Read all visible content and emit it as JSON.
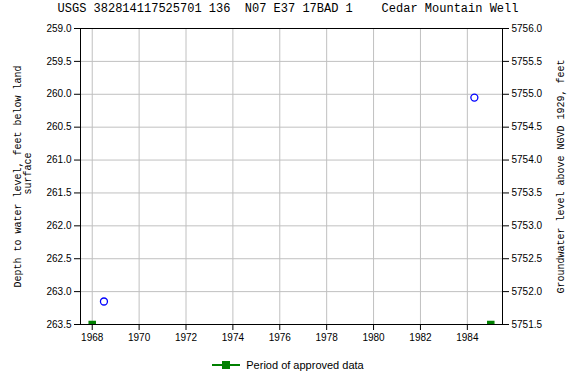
{
  "chart_data": {
    "type": "scatter",
    "title": "USGS 382814117525701 136  N07 E37 17BAD 1    Cedar Mountain Well",
    "ylabel": "Depth to water level, feet below land\n surface",
    "y2label": "Groundwater level above NGVD 1929, feet",
    "xlim": [
      1967.5,
      1985.5
    ],
    "xticks": [
      1968,
      1970,
      1972,
      1974,
      1976,
      1978,
      1980,
      1982,
      1984
    ],
    "ylim": [
      263.5,
      259.0
    ],
    "yticks": [
      {
        "value": 259.0,
        "label": "259.0"
      },
      259.5,
      {
        "value": 260.0,
        "label": "260.0"
      },
      260.5,
      {
        "value": 261.0,
        "label": "261.0"
      },
      261.5,
      {
        "value": 262.0,
        "label": "262.0"
      },
      262.5,
      {
        "value": 263.0,
        "label": "263.0"
      },
      263.5
    ],
    "y2lim": [
      5751.5,
      5756.0
    ],
    "y2ticks": [
      {
        "value": 5756.0,
        "label": "5756.0"
      },
      5755.5,
      {
        "value": 5755.0,
        "label": "5755.0"
      },
      5754.5,
      {
        "value": 5754.0,
        "label": "5754.0"
      },
      5753.5,
      {
        "value": 5753.0,
        "label": "5753.0"
      },
      5752.5,
      {
        "value": 5752.0,
        "label": "5752.0"
      },
      5751.5
    ],
    "grid": true,
    "legend": "bottom",
    "series": [
      {
        "color": "#0000ff",
        "marker": "circle",
        "x": [
          1968.5,
          1984.3
        ],
        "values": [
          263.15,
          260.05
        ]
      },
      {
        "name": "Period of approved data",
        "color": "#008000",
        "marker": "square",
        "x": [
          1968.0,
          1985.0
        ],
        "values": [
          263.5,
          263.5
        ]
      }
    ]
  }
}
